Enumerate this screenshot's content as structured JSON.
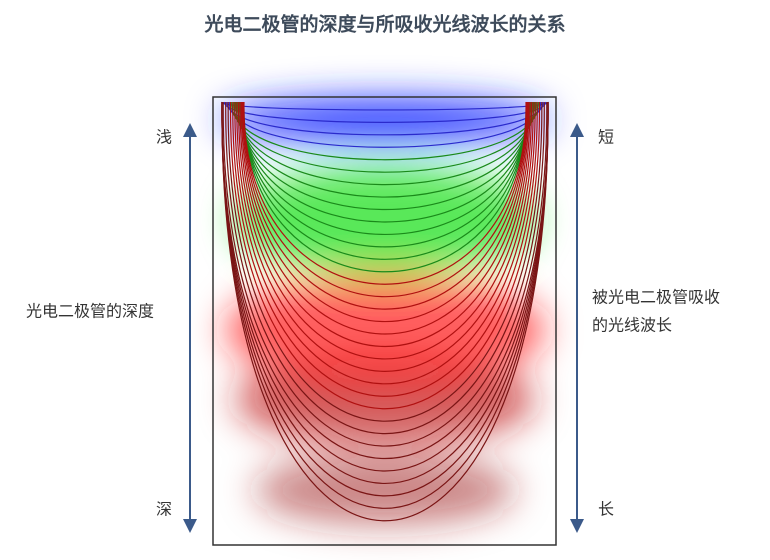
{
  "title": "光电二极管的深度与所吸收光线波长的关系",
  "left_axis": {
    "top": "浅",
    "bottom": "深",
    "label": "光电二极管的深度"
  },
  "right_axis": {
    "top": "短",
    "bottom": "长",
    "label_lines": [
      "被光电二极管吸收",
      "的光线波长"
    ]
  }
}
